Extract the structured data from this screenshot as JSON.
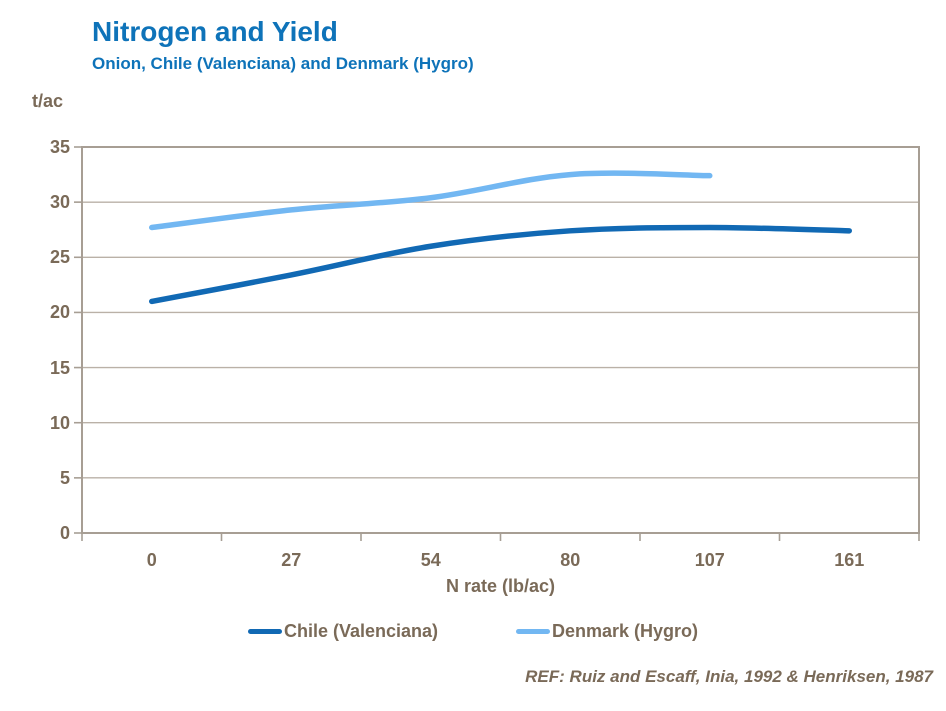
{
  "header": {
    "title": "Nitrogen and Yield",
    "subtitle": "Onion, Chile (Valenciana) and Denmark (Hygro)"
  },
  "chart_data": {
    "type": "line",
    "title": "Nitrogen and Yield",
    "subtitle": "Onion, Chile (Valenciana) and Denmark (Hygro)",
    "xlabel": "N rate (lb/ac)",
    "ylabel": "t/ac",
    "categories": [
      "0",
      "27",
      "54",
      "80",
      "107",
      "161"
    ],
    "series": [
      {
        "name": "Chile (Valenciana)",
        "color": "#1169b4",
        "values": [
          21.0,
          23.4,
          26.0,
          27.4,
          27.7,
          27.4
        ]
      },
      {
        "name": "Denmark (Hygro)",
        "color": "#72b7f2",
        "values": [
          27.7,
          29.3,
          30.4,
          32.5,
          32.4
        ]
      }
    ],
    "ylim": [
      0,
      35
    ],
    "yticks": [
      0,
      5,
      10,
      15,
      20,
      25,
      30,
      35
    ],
    "grid": true,
    "smooth": true,
    "legend_position": "bottom"
  },
  "footer": {
    "ref": "REF: Ruiz and Escaff, Inia, 1992 & Henriksen, 1987"
  },
  "colors": {
    "title_blue": "#0e73b9",
    "axis_text_brown": "#7a6a58",
    "gridline": "#bab1a7",
    "plot_border": "#a79e94",
    "chile_line": "#1169b4",
    "denmark_line": "#72b7f2"
  }
}
